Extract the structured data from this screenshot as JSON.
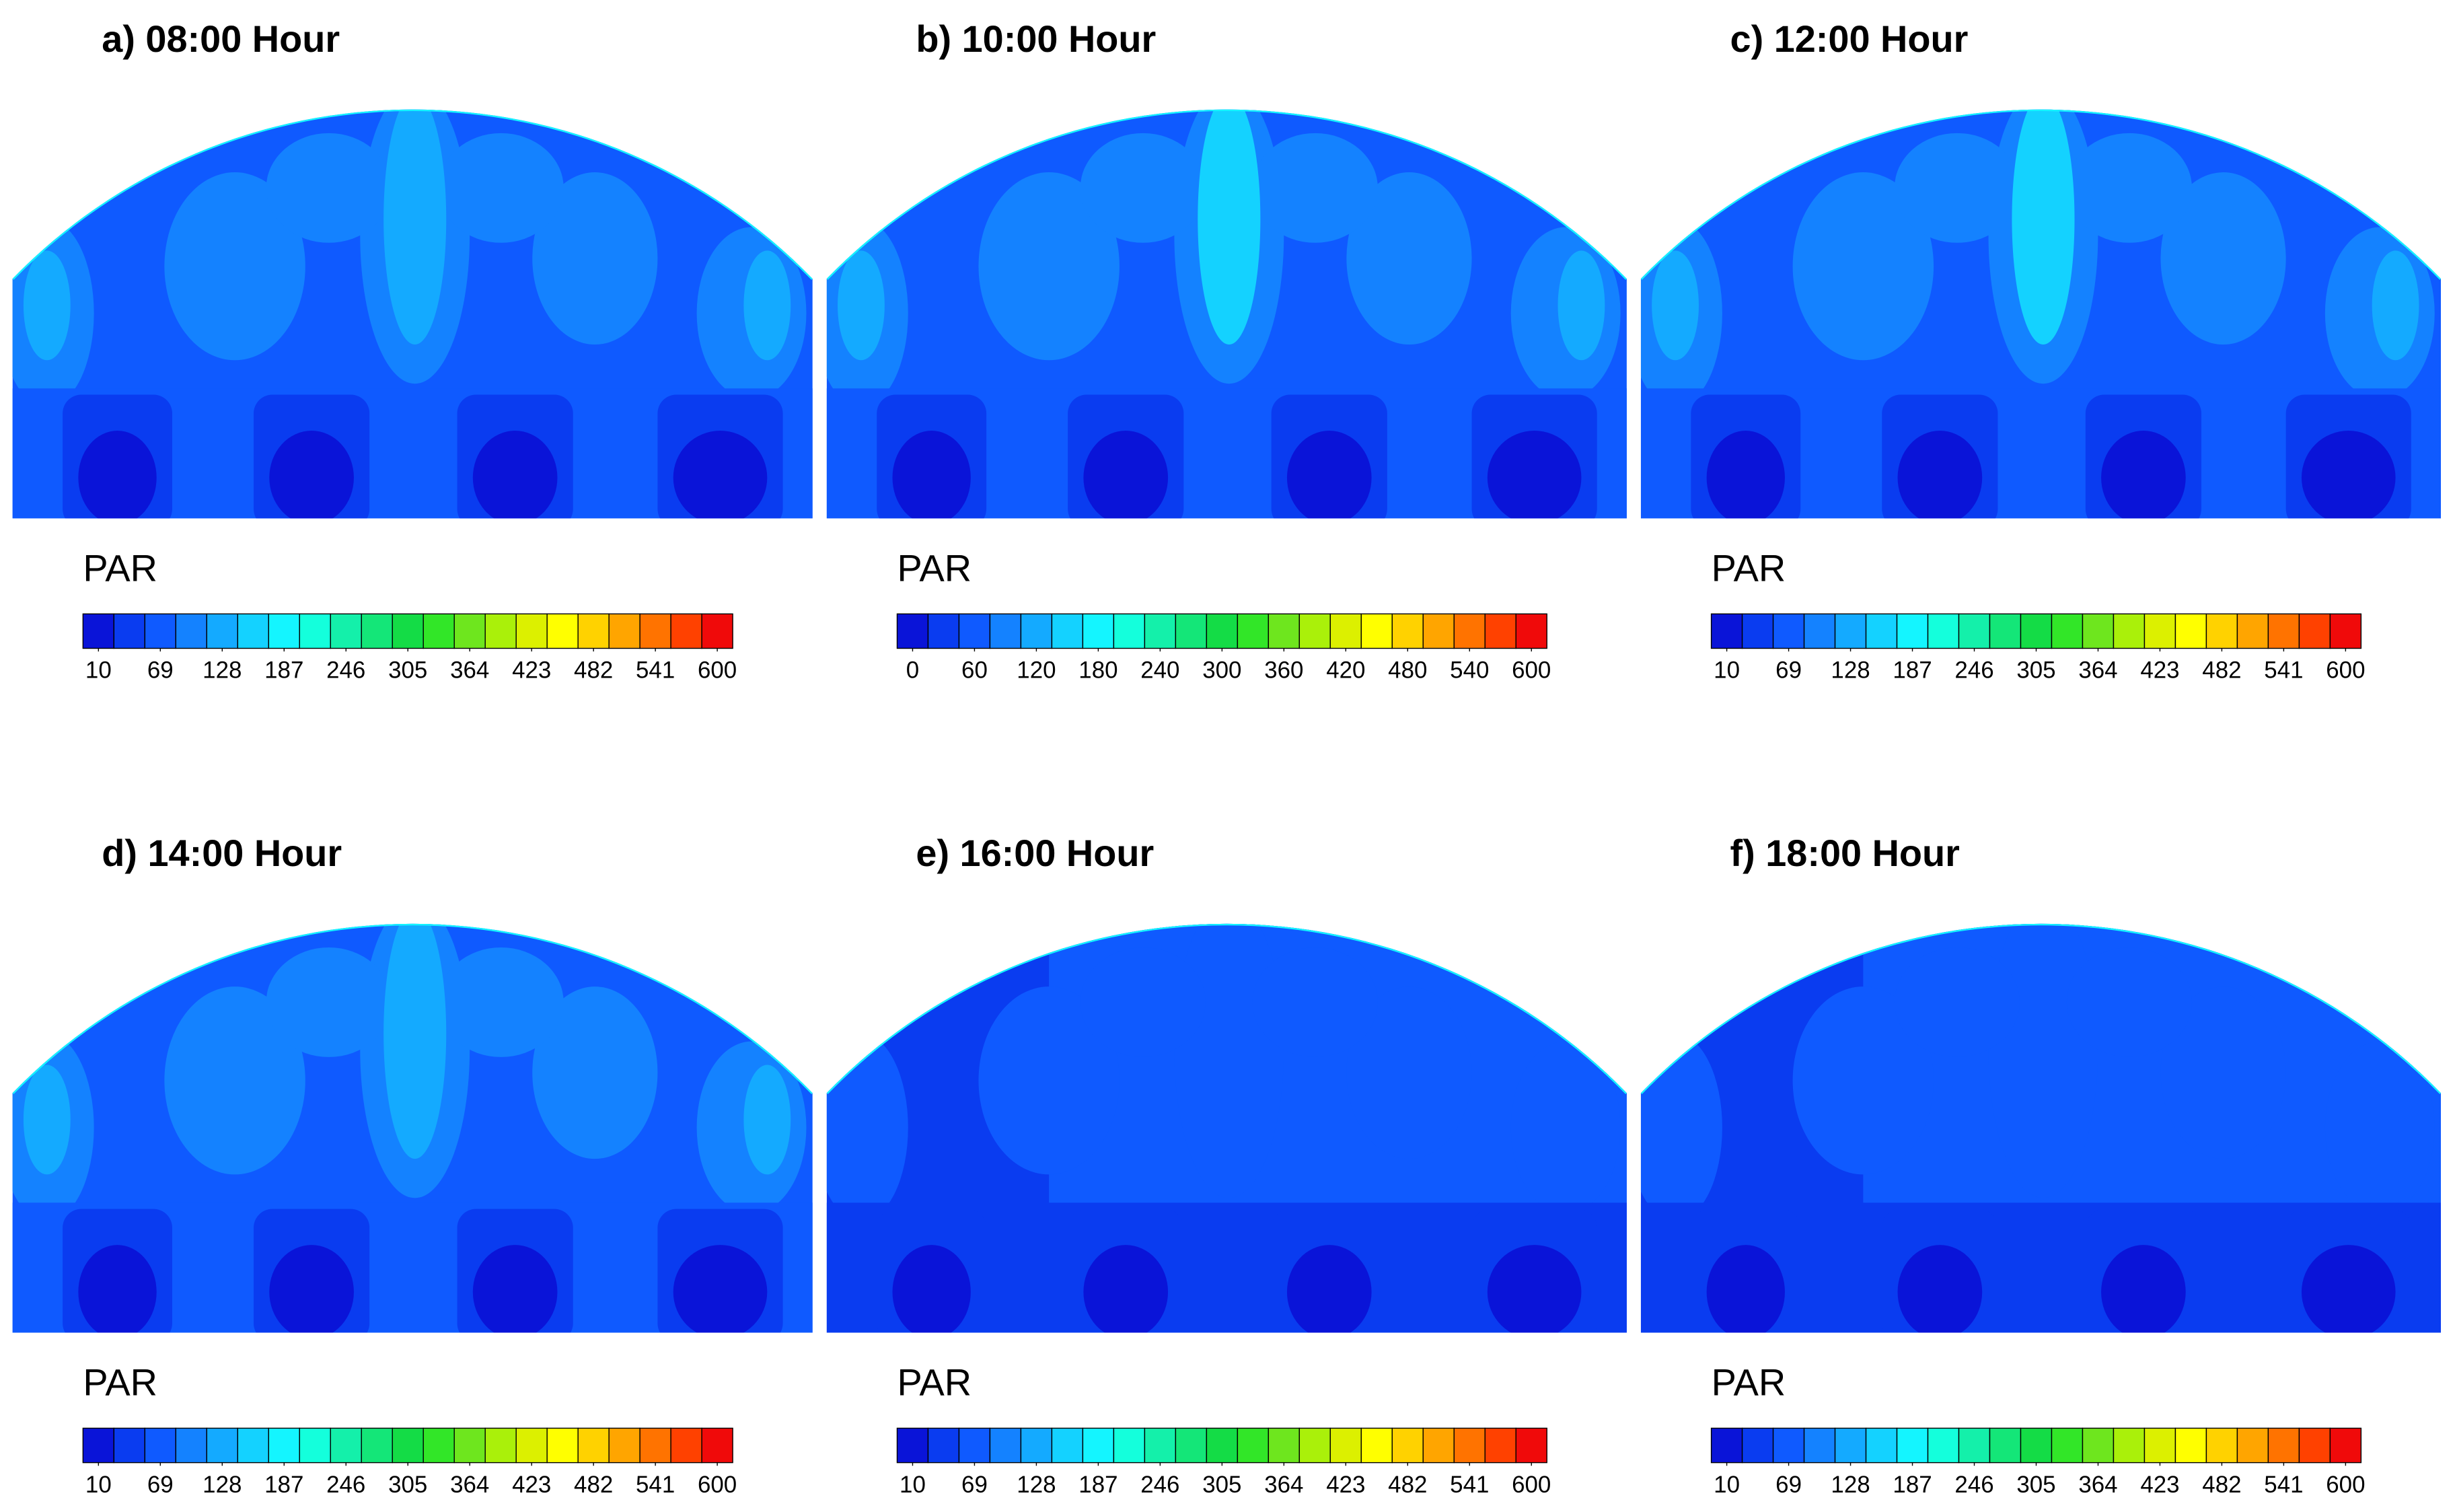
{
  "chart_data": [
    {
      "type": "contour",
      "title": "a)  08:00 Hour",
      "colorbar": {
        "label": "PAR",
        "ticks": [
          10,
          69,
          128,
          187,
          246,
          305,
          364,
          423,
          482,
          541,
          600
        ]
      },
      "colors": [
        "#0a14d8",
        "#0a3cf0",
        "#0f5aff",
        "#1482ff",
        "#14aaff",
        "#14d2ff",
        "#14f5ff",
        "#14ffdc",
        "#14f0aa",
        "#14e678",
        "#14dc46",
        "#32e628",
        "#6ee61e",
        "#aaf00a",
        "#dcf000",
        "#ffff00",
        "#ffd200",
        "#ffa500",
        "#ff7300",
        "#ff4100",
        "#f00a0a"
      ]
    },
    {
      "type": "contour",
      "title": "b)  10:00 Hour",
      "colorbar": {
        "label": "PAR",
        "ticks": [
          0,
          60,
          120,
          180,
          240,
          300,
          360,
          420,
          480,
          540,
          600
        ]
      },
      "colors": [
        "#0a14d8",
        "#0a3cf0",
        "#0f5aff",
        "#1482ff",
        "#14aaff",
        "#14d2ff",
        "#14f5ff",
        "#14ffdc",
        "#14f0aa",
        "#14e678",
        "#14dc46",
        "#32e628",
        "#6ee61e",
        "#aaf00a",
        "#dcf000",
        "#ffff00",
        "#ffd200",
        "#ffa500",
        "#ff7300",
        "#ff4100",
        "#f00a0a"
      ]
    },
    {
      "type": "contour",
      "title": "c)  12:00 Hour",
      "colorbar": {
        "label": "PAR",
        "ticks": [
          10,
          69,
          128,
          187,
          246,
          305,
          364,
          423,
          482,
          541,
          600
        ]
      },
      "colors": [
        "#0a14d8",
        "#0a3cf0",
        "#0f5aff",
        "#1482ff",
        "#14aaff",
        "#14d2ff",
        "#14f5ff",
        "#14ffdc",
        "#14f0aa",
        "#14e678",
        "#14dc46",
        "#32e628",
        "#6ee61e",
        "#aaf00a",
        "#dcf000",
        "#ffff00",
        "#ffd200",
        "#ffa500",
        "#ff7300",
        "#ff4100",
        "#f00a0a"
      ]
    },
    {
      "type": "contour",
      "title": "d)  14:00 Hour",
      "colorbar": {
        "label": "PAR",
        "ticks": [
          10,
          69,
          128,
          187,
          246,
          305,
          364,
          423,
          482,
          541,
          600
        ]
      },
      "colors": [
        "#0a14d8",
        "#0a3cf0",
        "#0f5aff",
        "#1482ff",
        "#14aaff",
        "#14d2ff",
        "#14f5ff",
        "#14ffdc",
        "#14f0aa",
        "#14e678",
        "#14dc46",
        "#32e628",
        "#6ee61e",
        "#aaf00a",
        "#dcf000",
        "#ffff00",
        "#ffd200",
        "#ffa500",
        "#ff7300",
        "#ff4100",
        "#f00a0a"
      ]
    },
    {
      "type": "contour",
      "title": "e)  16:00 Hour",
      "colorbar": {
        "label": "PAR",
        "ticks": [
          10,
          69,
          128,
          187,
          246,
          305,
          364,
          423,
          482,
          541,
          600
        ]
      },
      "colors": [
        "#0a14d8",
        "#0a3cf0",
        "#0f5aff",
        "#1482ff",
        "#14aaff",
        "#14d2ff",
        "#14f5ff",
        "#14ffdc",
        "#14f0aa",
        "#14e678",
        "#14dc46",
        "#32e628",
        "#6ee61e",
        "#aaf00a",
        "#dcf000",
        "#ffff00",
        "#ffd200",
        "#ffa500",
        "#ff7300",
        "#ff4100",
        "#f00a0a"
      ]
    },
    {
      "type": "contour",
      "title": "f)  18:00 Hour",
      "colorbar": {
        "label": "PAR",
        "ticks": [
          10,
          69,
          128,
          187,
          246,
          305,
          364,
          423,
          482,
          541,
          600
        ]
      },
      "colors": [
        "#0a14d8",
        "#0a3cf0",
        "#0f5aff",
        "#1482ff",
        "#14aaff",
        "#14d2ff",
        "#14f5ff",
        "#14ffdc",
        "#14f0aa",
        "#14e678",
        "#14dc46",
        "#32e628",
        "#6ee61e",
        "#aaf00a",
        "#dcf000",
        "#ffff00",
        "#ffd200",
        "#ffa500",
        "#ff7300",
        "#ff4100",
        "#f00a0a"
      ]
    }
  ]
}
